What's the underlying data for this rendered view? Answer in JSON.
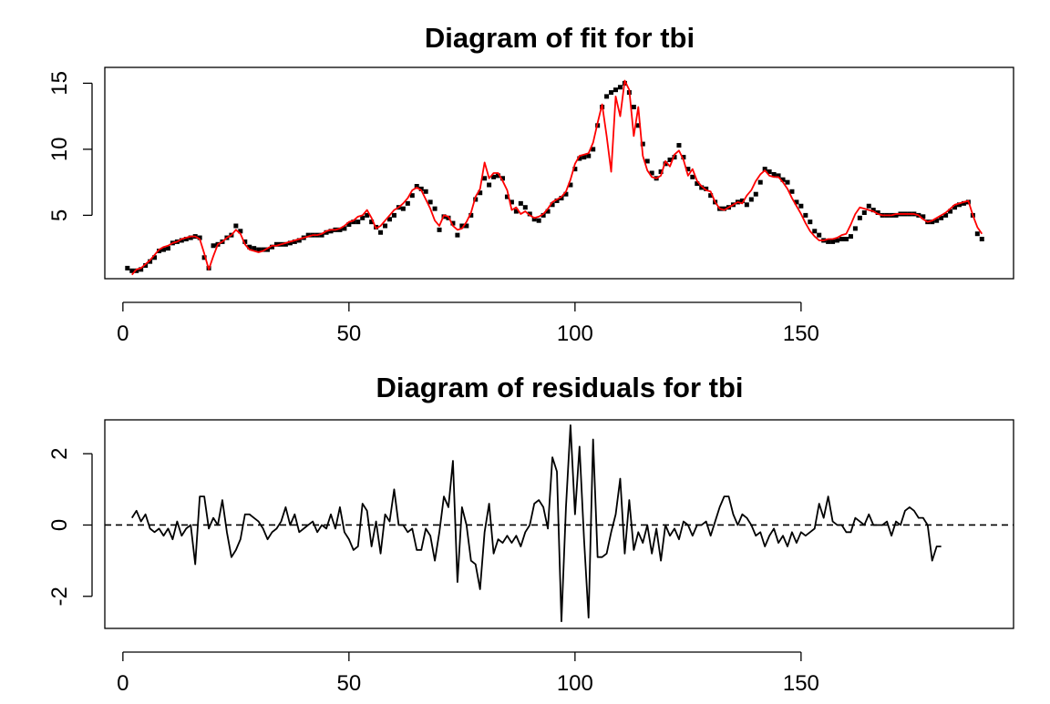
{
  "figure": {
    "colors": {
      "fit_line": "#ff0000",
      "observed_points": "#000000",
      "residual_line": "#000000"
    }
  },
  "chart_data": [
    {
      "type": "line",
      "title": "Diagram of fit for tbi",
      "xlabel": "",
      "ylabel": "",
      "xlim": [
        -4,
        197
      ],
      "ylim": [
        0.2,
        16.2
      ],
      "x_ticks": [
        0,
        50,
        100,
        150
      ],
      "x_tick_labels": [
        "0",
        "50",
        "100",
        "150"
      ],
      "y_ticks": [
        5,
        10,
        15
      ],
      "y_tick_labels": [
        "5",
        "10",
        "15"
      ],
      "grid": false,
      "legend": "none",
      "x_start": 1,
      "series": [
        {
          "style": "points",
          "color": "#000000",
          "values": [
            1.0,
            0.8,
            0.8,
            0.9,
            1.2,
            1.5,
            1.8,
            2.3,
            2.4,
            2.5,
            2.9,
            3.0,
            3.1,
            3.2,
            3.3,
            3.4,
            3.3,
            1.8,
            1.0,
            2.7,
            2.8,
            3.0,
            3.3,
            3.5,
            4.2,
            3.8,
            3.0,
            2.6,
            2.5,
            2.4,
            2.4,
            2.4,
            2.6,
            2.8,
            2.8,
            2.8,
            2.9,
            3.0,
            3.1,
            3.3,
            3.5,
            3.5,
            3.5,
            3.5,
            3.7,
            3.8,
            3.9,
            3.9,
            4.0,
            4.3,
            4.5,
            4.5,
            4.8,
            5.0,
            4.5,
            4.1,
            3.7,
            4.2,
            4.7,
            5.0,
            5.6,
            5.5,
            5.9,
            6.5,
            7.2,
            7.0,
            6.8,
            6.0,
            5.5,
            3.9,
            4.9,
            4.8,
            4.4,
            3.5,
            4.2,
            4.2,
            5.0,
            6.2,
            6.7,
            7.8,
            7.3,
            7.9,
            8.0,
            7.8,
            6.4,
            6.0,
            5.3,
            5.9,
            5.6,
            5.1,
            4.7,
            4.6,
            5.0,
            5.3,
            5.8,
            6.1,
            6.3,
            6.6,
            7.3,
            8.5,
            9.3,
            9.4,
            9.5,
            10.0,
            11.8,
            13.2,
            14.0,
            14.3,
            14.5,
            14.7,
            15.0,
            14.3,
            13.2,
            11.8,
            10.4,
            9.1,
            8.2,
            7.8,
            8.3,
            8.9,
            9.2,
            9.4,
            10.3,
            9.4,
            8.5,
            7.9,
            7.4,
            7.1,
            7.0,
            6.5,
            6.0,
            5.5,
            5.5,
            5.6,
            5.8,
            6.0,
            6.1,
            5.8,
            6.2,
            6.6,
            7.5,
            8.5,
            8.3,
            8.1,
            8.0,
            7.7,
            7.5,
            6.8,
            6.0,
            5.7,
            5.0,
            4.5,
            3.8,
            3.5,
            3.1,
            3.0,
            3.0,
            3.1,
            3.2,
            3.2,
            3.4,
            4.0,
            4.8,
            5.2,
            5.7,
            5.4,
            5.2,
            5.0,
            5.0,
            5.0,
            5.0,
            5.1,
            5.1,
            5.1,
            5.1,
            5.0,
            4.9,
            4.5,
            4.5,
            4.6,
            4.8,
            5.0,
            5.3,
            5.6,
            5.8,
            5.9,
            6.0,
            5.0,
            3.6,
            3.2
          ]
        },
        {
          "style": "line",
          "color": "#ff0000",
          "values": [
            null,
            0.5,
            0.9,
            1.0,
            1.3,
            1.6,
            2.0,
            2.4,
            2.6,
            2.7,
            2.9,
            3.0,
            3.2,
            3.3,
            3.4,
            3.4,
            3.2,
            2.1,
            0.9,
            1.9,
            2.8,
            3.0,
            3.3,
            3.5,
            3.9,
            3.6,
            2.8,
            2.4,
            2.3,
            2.2,
            2.3,
            2.5,
            2.7,
            2.7,
            2.8,
            2.9,
            3.0,
            3.1,
            3.2,
            3.3,
            3.4,
            3.5,
            3.5,
            3.6,
            3.8,
            3.9,
            3.9,
            4.0,
            4.2,
            4.5,
            4.6,
            4.9,
            5.0,
            5.4,
            4.8,
            4.0,
            4.2,
            4.6,
            5.0,
            5.4,
            5.6,
            5.9,
            6.3,
            6.9,
            7.1,
            6.9,
            6.2,
            5.5,
            4.6,
            4.2,
            5.0,
            4.9,
            4.2,
            3.9,
            4.0,
            4.5,
            5.2,
            6.4,
            7.0,
            9.0,
            7.8,
            8.2,
            8.2,
            7.6,
            6.9,
            5.4,
            5.6,
            5.1,
            5.3,
            5.0,
            4.8,
            4.9,
            5.1,
            5.5,
            6.0,
            6.2,
            6.4,
            6.8,
            7.7,
            8.9,
            9.5,
            9.6,
            9.7,
            10.5,
            12.0,
            13.4,
            11.0,
            8.3,
            14.0,
            12.5,
            15.2,
            14.5,
            11.0,
            13.2,
            9.5,
            8.4,
            7.9,
            7.8,
            8.0,
            9.1,
            8.7,
            9.6,
            9.9,
            9.2,
            8.0,
            8.5,
            7.6,
            7.2,
            6.9,
            6.8,
            6.0,
            5.5,
            5.4,
            5.6,
            5.8,
            6.0,
            5.9,
            6.5,
            6.9,
            7.6,
            8.1,
            8.4,
            8.0,
            7.9,
            7.9,
            7.5,
            7.0,
            6.3,
            5.7,
            5.1,
            4.4,
            3.8,
            3.4,
            3.1,
            3.1,
            3.2,
            3.2,
            3.3,
            3.5,
            3.6,
            4.3,
            5.1,
            5.6,
            5.5,
            5.4,
            5.3,
            5.1,
            5.0,
            5.0,
            5.0,
            5.1,
            5.1,
            5.1,
            5.1,
            5.1,
            5.0,
            4.7,
            4.5,
            4.6,
            4.8,
            5.0,
            5.2,
            5.5,
            5.8,
            5.9,
            6.0,
            6.1,
            5.0,
            4.1,
            3.6
          ]
        }
      ]
    },
    {
      "type": "line",
      "title": "Diagram of residuals for tbi",
      "xlabel": "",
      "ylabel": "",
      "xlim": [
        -4,
        197
      ],
      "ylim": [
        -2.9,
        2.95
      ],
      "x_ticks": [
        0,
        50,
        100,
        150
      ],
      "x_tick_labels": [
        "0",
        "50",
        "100",
        "150"
      ],
      "y_ticks": [
        -2,
        0,
        2
      ],
      "y_tick_labels": [
        "-2",
        "0",
        "2"
      ],
      "grid": false,
      "legend": "none",
      "reference_line": {
        "y": 0,
        "style": "dashed"
      },
      "x_start": 2,
      "series": [
        {
          "style": "line",
          "color": "#000000",
          "values": [
            0.2,
            0.4,
            0.1,
            0.3,
            -0.1,
            -0.2,
            -0.1,
            -0.3,
            -0.1,
            -0.4,
            0.1,
            -0.3,
            -0.1,
            0.0,
            -1.1,
            0.8,
            0.8,
            -0.1,
            0.2,
            0.0,
            0.7,
            -0.2,
            -0.9,
            -0.7,
            -0.4,
            0.3,
            0.3,
            0.2,
            0.1,
            -0.1,
            -0.4,
            -0.2,
            -0.1,
            0.1,
            0.5,
            0.0,
            0.3,
            -0.2,
            -0.1,
            0.0,
            0.1,
            -0.2,
            0.0,
            -0.1,
            0.3,
            -0.1,
            0.5,
            -0.2,
            -0.4,
            -0.7,
            -0.6,
            0.6,
            0.4,
            -0.6,
            0.1,
            -0.8,
            0.3,
            0.1,
            1.0,
            0.0,
            0.0,
            -0.2,
            -0.1,
            -0.7,
            -0.7,
            -0.1,
            -0.3,
            -1.0,
            -0.2,
            0.8,
            0.5,
            1.8,
            -1.6,
            0.5,
            0.0,
            -1.0,
            -1.1,
            -1.8,
            -0.2,
            0.6,
            -0.8,
            -0.4,
            -0.5,
            -0.3,
            -0.5,
            -0.3,
            -0.6,
            -0.2,
            0.0,
            0.6,
            0.7,
            0.5,
            -0.1,
            1.9,
            1.5,
            -2.7,
            0.5,
            2.8,
            0.3,
            2.2,
            -0.4,
            -2.6,
            2.4,
            -0.9,
            -0.9,
            -0.8,
            -0.2,
            0.3,
            1.3,
            -0.8,
            0.7,
            -0.7,
            -0.2,
            -0.5,
            0.0,
            -0.8,
            -0.1,
            -1.0,
            0.0,
            -0.3,
            -0.1,
            -0.4,
            0.1,
            0.0,
            -0.3,
            0.0,
            0.0,
            0.1,
            -0.3,
            0.1,
            0.5,
            0.8,
            0.8,
            0.3,
            0.0,
            0.3,
            0.2,
            0.0,
            -0.3,
            -0.2,
            -0.6,
            -0.3,
            -0.1,
            -0.5,
            -0.3,
            -0.6,
            -0.2,
            -0.5,
            -0.2,
            -0.3,
            -0.2,
            -0.1,
            0.6,
            0.2,
            0.8,
            0.1,
            0.0,
            0.0,
            -0.2,
            -0.2,
            0.2,
            0.1,
            0.0,
            0.3,
            0.0,
            0.0,
            0.0,
            0.1,
            -0.3,
            0.1,
            0.0,
            0.4,
            0.5,
            0.4,
            0.2,
            0.2,
            0.0,
            -1.0,
            -0.6,
            -0.6
          ]
        }
      ]
    }
  ]
}
